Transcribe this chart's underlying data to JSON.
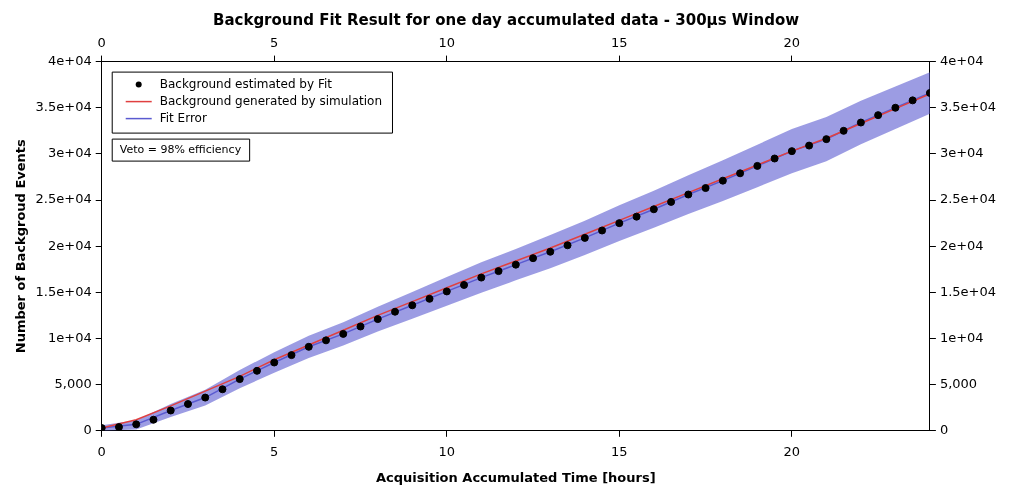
{
  "chart_data": {
    "type": "scatter",
    "title": "Background Fit Result for one day accumulated data - 300µs Window",
    "xlabel": "Acquisition Accumulated Time [hours]",
    "ylabel": "Number of Backgroud Events",
    "annotations": [
      "Veto = 98% efficiency"
    ],
    "x": [
      0,
      0.5,
      1,
      1.5,
      2,
      2.5,
      3,
      3.5,
      4,
      4.5,
      5,
      5.5,
      6,
      6.5,
      7,
      7.5,
      8,
      8.5,
      9,
      9.5,
      10,
      10.5,
      11,
      11.5,
      12,
      12.5,
      13,
      13.5,
      14,
      14.5,
      15,
      15.5,
      16,
      16.5,
      17,
      17.5,
      18,
      18.5,
      19,
      19.5,
      20,
      20.5,
      21,
      21.5,
      22,
      22.5,
      23,
      23.5,
      24
    ],
    "series": [
      {
        "name": "Background estimated by Fit",
        "type": "scatter",
        "marker": "circle",
        "color": "#000000",
        "values": [
          300,
          400,
          700,
          1200,
          2200,
          2900,
          3600,
          4500,
          5600,
          6500,
          7400,
          8200,
          9100,
          9800,
          10500,
          11300,
          12100,
          12900,
          13600,
          14300,
          15100,
          15800,
          16600,
          17300,
          18000,
          18700,
          19400,
          20100,
          20900,
          21700,
          22500,
          23200,
          24000,
          24800,
          25600,
          26300,
          27100,
          27900,
          28700,
          29500,
          30300,
          30900,
          31600,
          32500,
          33400,
          34200,
          35000,
          35800,
          36600
        ]
      },
      {
        "name": "Background generated by simulation",
        "type": "line",
        "marker": "none",
        "color": "#e04040",
        "x": [
          0,
          1,
          2,
          3,
          4,
          5,
          6,
          7,
          8,
          9,
          10,
          11,
          12,
          13,
          14,
          15,
          16,
          17,
          18,
          19,
          20,
          21,
          22,
          23,
          24
        ],
        "values": [
          300,
          1200,
          2700,
          4300,
          5900,
          7700,
          9300,
          10900,
          12500,
          14000,
          15500,
          17000,
          18400,
          19800,
          21300,
          22800,
          24300,
          25800,
          27300,
          28800,
          30300,
          31700,
          33300,
          34900,
          36500
        ]
      },
      {
        "name": "Fit Error",
        "type": "line",
        "color": "#5a5ad0",
        "x": [
          0,
          1,
          2,
          3,
          4,
          5,
          6,
          7,
          8,
          9,
          10,
          11,
          12,
          13,
          14,
          15,
          16,
          17,
          18,
          19,
          20,
          21,
          22,
          23,
          24
        ],
        "values": [
          300,
          700,
          2200,
          3600,
          5600,
          7400,
          9100,
          10500,
          12100,
          13600,
          15100,
          16600,
          18000,
          19400,
          20900,
          22500,
          24000,
          25600,
          27100,
          28700,
          30300,
          31600,
          33400,
          35000,
          36600
        ],
        "lower": [
          0,
          150,
          1500,
          2750,
          4600,
          6300,
          7900,
          9250,
          10750,
          12150,
          13550,
          14950,
          16300,
          17600,
          19050,
          20550,
          22000,
          23500,
          24900,
          26400,
          27900,
          29200,
          31050,
          32700,
          34350
        ],
        "upper": [
          600,
          1150,
          2900,
          4450,
          6600,
          8500,
          10300,
          11750,
          13450,
          15050,
          16650,
          18250,
          19700,
          21200,
          22750,
          24450,
          26000,
          27700,
          29300,
          31000,
          32700,
          34000,
          35750,
          37300,
          38850
        ]
      }
    ],
    "xlim": [
      0,
      24
    ],
    "xticks": [
      0,
      5,
      10,
      15,
      20
    ],
    "x2lim": [
      0,
      24
    ],
    "x2ticks": [
      0,
      5,
      10,
      15,
      20
    ],
    "ylim": [
      0,
      40000
    ],
    "yticks": [
      0,
      {
        "value": 5000,
        "label": "5,000"
      },
      {
        "value": 10000,
        "label": "1e+04"
      },
      {
        "value": 15000,
        "label": "1.5e+04"
      },
      {
        "value": 20000,
        "label": "2e+04"
      },
      {
        "value": 25000,
        "label": "2.5e+04"
      },
      {
        "value": 30000,
        "label": "3e+04"
      },
      {
        "value": 35000,
        "label": "3.5e+04"
      },
      {
        "value": 40000,
        "label": "4e+04"
      }
    ],
    "y2lim": [
      0,
      40000
    ],
    "y2ticks": [
      0,
      {
        "value": 5000,
        "label": "5,000"
      },
      {
        "value": 10000,
        "label": "1e+04"
      },
      {
        "value": 15000,
        "label": "1.5e+04"
      },
      {
        "value": 20000,
        "label": "2e+04"
      },
      {
        "value": 25000,
        "label": "2.5e+04"
      },
      {
        "value": 30000,
        "label": "3e+04"
      },
      {
        "value": 35000,
        "label": "3.5e+04"
      },
      {
        "value": 40000,
        "label": "4e+04"
      }
    ],
    "grid": false,
    "legend": "top left"
  }
}
